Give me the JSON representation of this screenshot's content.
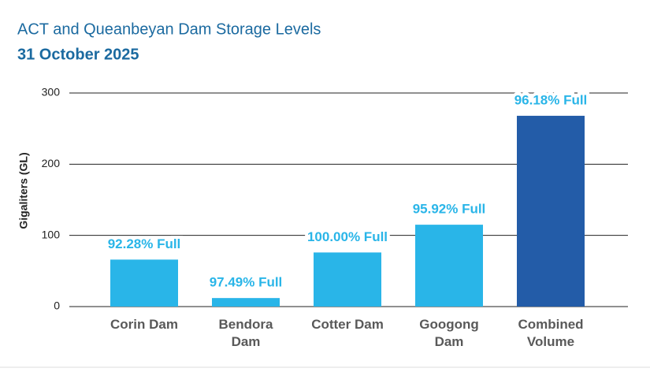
{
  "chart_data": {
    "type": "bar",
    "title": "ACT and Queanbeyan Dam Storage Levels",
    "subtitle": "31 October 2025",
    "y_label": "Gigaliters (GL)",
    "categories": [
      "Corin Dam",
      "Bendora Dam",
      "Cotter Dam",
      "Googong Dam",
      "Combined Volume"
    ],
    "values": [
      66,
      12,
      76,
      115,
      268
    ],
    "annotations": [
      "92.28% Full",
      "97.49% Full",
      "100.00% Full",
      "95.92% Full",
      "96.18% Full"
    ],
    "colors": [
      "#29b5e8",
      "#29b5e8",
      "#29b5e8",
      "#29b5e8",
      "#235ca8"
    ],
    "ylim": [
      0,
      300
    ],
    "yticks": [
      0,
      100,
      200,
      300
    ],
    "grid": true
  }
}
